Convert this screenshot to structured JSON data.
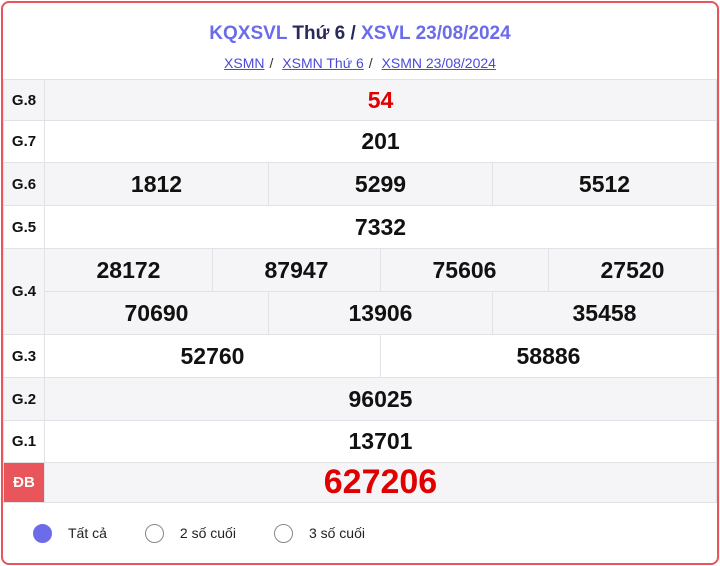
{
  "header": {
    "title_a": "KQXSVL",
    "title_b": "Thứ 6",
    "title_sep": "/",
    "title_c": "XSVL 23/08/2024",
    "breadcrumbs": [
      "XSMN",
      "XSMN Thứ 6",
      "XSMN 23/08/2024"
    ]
  },
  "prizes": {
    "g8": {
      "label": "G.8",
      "values": [
        "54"
      ]
    },
    "g7": {
      "label": "G.7",
      "values": [
        "201"
      ]
    },
    "g6": {
      "label": "G.6",
      "values": [
        "1812",
        "5299",
        "5512"
      ]
    },
    "g5": {
      "label": "G.5",
      "values": [
        "7332"
      ]
    },
    "g4": {
      "label": "G.4",
      "values": [
        "28172",
        "87947",
        "75606",
        "27520",
        "70690",
        "13906",
        "35458"
      ]
    },
    "g3": {
      "label": "G.3",
      "values": [
        "52760",
        "58886"
      ]
    },
    "g2": {
      "label": "G.2",
      "values": [
        "96025"
      ]
    },
    "g1": {
      "label": "G.1",
      "values": [
        "13701"
      ]
    },
    "db": {
      "label": "ĐB",
      "values": [
        "627206"
      ]
    }
  },
  "filters": [
    {
      "label": "Tất cả",
      "selected": true
    },
    {
      "label": "2 số cuối",
      "selected": false
    },
    {
      "label": "3 số cuối",
      "selected": false
    }
  ],
  "colors": {
    "accent": "#6c6cea",
    "border": "#e8555a",
    "highlight": "#e00000"
  }
}
